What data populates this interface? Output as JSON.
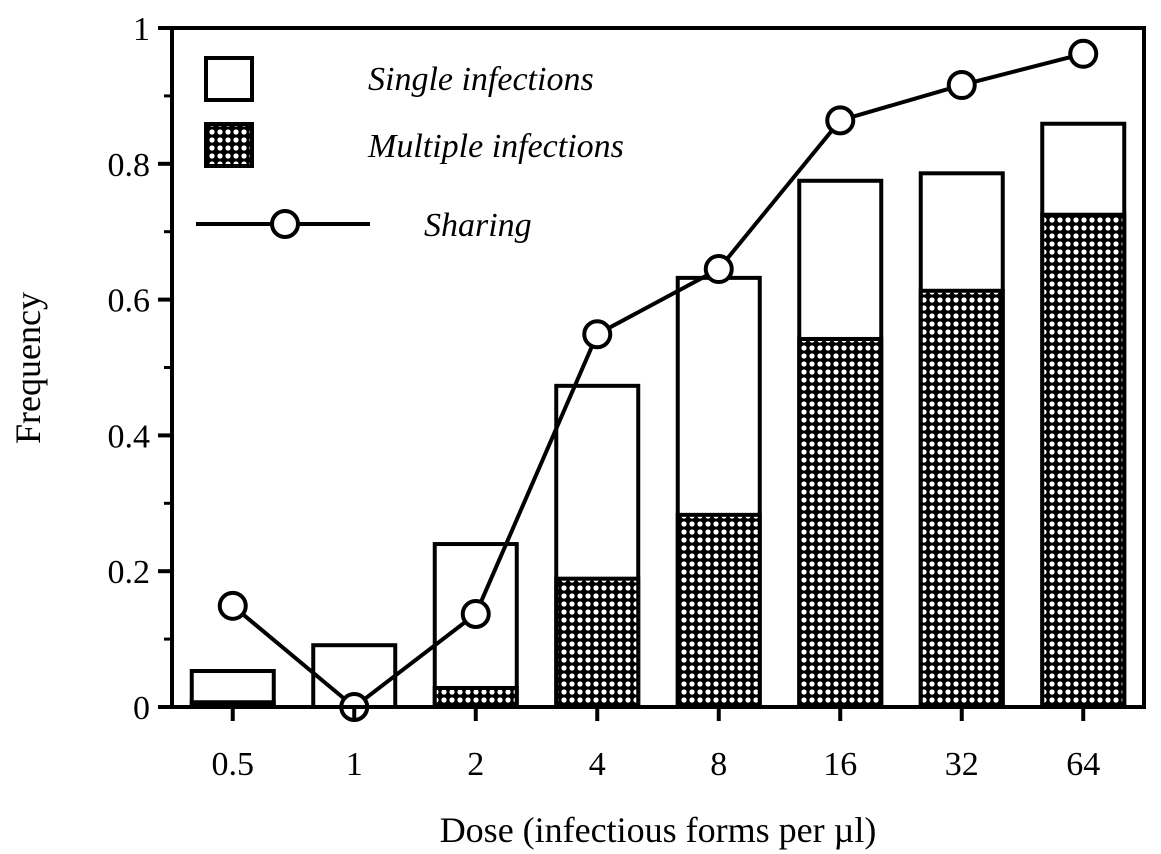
{
  "chart_data": {
    "type": "bar",
    "stacked": true,
    "categories": [
      "0.5",
      "1",
      "2",
      "4",
      "8",
      "16",
      "32",
      "64"
    ],
    "xlabel": "Dose (infectious forms per µl)",
    "ylabel": "Frequency",
    "ylim": [
      0,
      1
    ],
    "yticks": [
      "0",
      "0.2",
      "0.4",
      "0.6",
      "0.8",
      "1"
    ],
    "grid": false,
    "legend_position": "top-left",
    "series": [
      {
        "name": "Multiple infections",
        "type": "bar",
        "pattern": "dotted",
        "values": [
          0.007,
          0,
          0.028,
          0.189,
          0.283,
          0.542,
          0.613,
          0.725
        ]
      },
      {
        "name": "Single infections",
        "type": "bar",
        "pattern": "white",
        "values": [
          0.046,
          0.091,
          0.212,
          0.284,
          0.349,
          0.233,
          0.173,
          0.134
        ]
      },
      {
        "name": "Sharing",
        "type": "line",
        "marker": "open-circle",
        "values": [
          0.149,
          0,
          0.137,
          0.549,
          0.645,
          0.864,
          0.916,
          0.962
        ]
      }
    ],
    "colors": {
      "ink": "#000000",
      "background": "#ffffff"
    }
  }
}
